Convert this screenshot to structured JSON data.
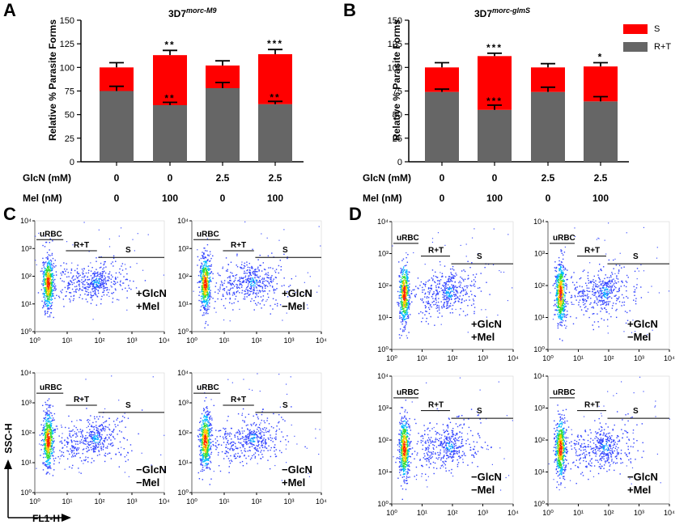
{
  "panels": {
    "A": "A",
    "B": "B",
    "C": "C",
    "D": "D"
  },
  "table_labels": {
    "glcn": "GlcN (mM)",
    "mel": "Mel (nM)"
  },
  "chart_data": [
    {
      "panel": "A",
      "type": "bar",
      "stacked": true,
      "title_main": "3D7",
      "title_sup": "morc-M9",
      "ylabel": "Relative % Parasite Forms",
      "ylim": [
        0,
        150
      ],
      "yticks": [
        0,
        25,
        50,
        75,
        100,
        125,
        150
      ],
      "categories": [
        "1",
        "2",
        "3",
        "4"
      ],
      "glcn": [
        "0",
        "0",
        "2.5",
        "2.5"
      ],
      "mel": [
        "0",
        "100",
        "0",
        "100"
      ],
      "series": [
        {
          "name": "R+T",
          "color": "#666666",
          "values": [
            75,
            60,
            78,
            61
          ],
          "error": [
            5,
            3,
            6,
            3
          ],
          "annotations": [
            "",
            "**",
            "",
            "**"
          ]
        },
        {
          "name": "S",
          "color": "#ff0000",
          "values": [
            25,
            53,
            24,
            53
          ],
          "error": [
            5,
            5,
            5,
            5
          ],
          "annotations": [
            "",
            "**",
            "",
            "***"
          ]
        }
      ]
    },
    {
      "panel": "B",
      "type": "bar",
      "stacked": true,
      "title_main": "3D7",
      "title_sup": "morc-glmS",
      "ylabel": "Relative % Parasite Forms",
      "ylim": [
        0,
        150
      ],
      "yticks": [
        0,
        25,
        50,
        75,
        100,
        125,
        150
      ],
      "categories": [
        "1",
        "2",
        "3",
        "4"
      ],
      "glcn": [
        "0",
        "0",
        "2.5",
        "2.5"
      ],
      "mel": [
        "0",
        "100",
        "0",
        "100"
      ],
      "series": [
        {
          "name": "R+T",
          "color": "#666666",
          "values": [
            74,
            55,
            74,
            64
          ],
          "error": [
            3,
            5,
            5,
            5
          ],
          "annotations": [
            "",
            "***",
            "",
            ""
          ]
        },
        {
          "name": "S",
          "color": "#ff0000",
          "values": [
            26,
            57,
            26,
            37
          ],
          "error": [
            5,
            3,
            4,
            4
          ],
          "annotations": [
            "",
            "***",
            "",
            "*"
          ]
        }
      ]
    }
  ],
  "legend": [
    {
      "label": "S",
      "color": "#ff0000"
    },
    {
      "label": "R+T",
      "color": "#666666"
    }
  ],
  "flow": {
    "gate_labels": {
      "urbc": "uRBC",
      "rt": "R+T",
      "s": "S"
    },
    "y_axis_title": "SSC-H",
    "x_axis_title": "FL1-H",
    "tick_labels": [
      "10⁰",
      "10¹",
      "10²",
      "10³",
      "10⁴"
    ],
    "plots": [
      {
        "id": "C1",
        "cond1": "+GlcN",
        "cond2": "+Mel"
      },
      {
        "id": "C2",
        "cond1": "+GlcN",
        "cond2": "−Mel"
      },
      {
        "id": "C3",
        "cond1": "−GlcN",
        "cond2": "−Mel"
      },
      {
        "id": "C4",
        "cond1": "−GlcN",
        "cond2": "+Mel"
      },
      {
        "id": "D1",
        "cond1": "+GlcN",
        "cond2": "+Mel"
      },
      {
        "id": "D2",
        "cond1": "+GlcN",
        "cond2": "−Mel"
      },
      {
        "id": "D3",
        "cond1": "−GlcN",
        "cond2": "−Mel"
      },
      {
        "id": "D4",
        "cond1": "−GlcN",
        "cond2": "+Mel"
      }
    ]
  }
}
